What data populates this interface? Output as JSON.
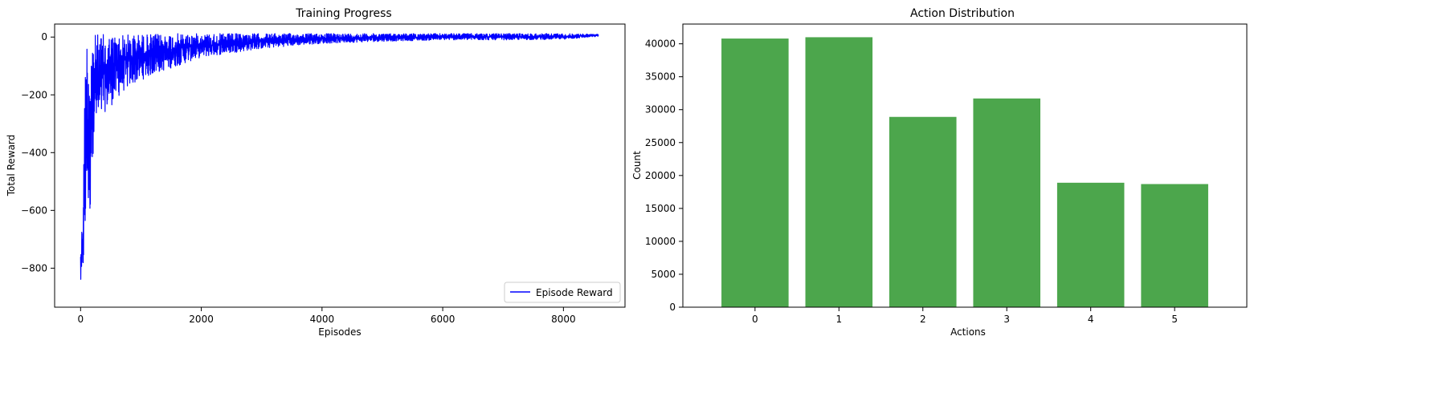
{
  "colors": {
    "line": "#0000ff",
    "bar": "#4ca64c",
    "axis": "#000000",
    "background": "#ffffff"
  },
  "chart_data": [
    {
      "type": "line",
      "title": "Training Progress",
      "xlabel": "Episodes",
      "ylabel": "Total Reward",
      "xlim": [
        -430,
        9020
      ],
      "ylim": [
        -935,
        45
      ],
      "xticks": [
        0,
        2000,
        4000,
        6000,
        8000
      ],
      "yticks": [
        -800,
        -600,
        -400,
        -200,
        0
      ],
      "grid": false,
      "legend": {
        "placement": "lower right",
        "entries": [
          "Episode Reward"
        ]
      },
      "series": [
        {
          "name": "Episode Reward",
          "x": [
            0,
            20,
            40,
            60,
            80,
            100,
            120,
            140,
            160,
            180,
            200,
            250,
            300,
            400,
            500,
            700,
            900,
            1200,
            1600,
            2000,
            2500,
            3000,
            3500,
            4000,
            5000,
            6000,
            7000,
            8000,
            8580
          ],
          "y": [
            -860,
            -880,
            -600,
            -700,
            -280,
            -100,
            -10,
            -620,
            -640,
            -150,
            -420,
            -220,
            -320,
            -230,
            -190,
            -160,
            -120,
            -100,
            -70,
            -60,
            -45,
            -40,
            -30,
            -20,
            -10,
            -5,
            -5,
            -5,
            5
          ],
          "band_upper": [
            -690,
            -650,
            -550,
            -300,
            5,
            10,
            10,
            5,
            0,
            0,
            10,
            10,
            10,
            10,
            10,
            10,
            10,
            10,
            12,
            12,
            12,
            12,
            12,
            12,
            12,
            12,
            12,
            12,
            10
          ],
          "band_lower": [
            -870,
            -890,
            -820,
            -790,
            -800,
            -500,
            -640,
            -650,
            -630,
            -420,
            -420,
            -320,
            -320,
            -260,
            -240,
            -190,
            -160,
            -130,
            -100,
            -70,
            -55,
            -40,
            -30,
            -22,
            -15,
            -10,
            -10,
            -8,
            2
          ]
        }
      ]
    },
    {
      "type": "bar",
      "title": "Action Distribution",
      "xlabel": "Actions",
      "ylabel": "Count",
      "categories": [
        "0",
        "1",
        "2",
        "3",
        "4",
        "5"
      ],
      "values": [
        40800,
        41000,
        28900,
        31700,
        18900,
        18700
      ],
      "xlim": [
        -0.86,
        5.86
      ],
      "ylim": [
        0,
        43000
      ],
      "yticks": [
        0,
        5000,
        10000,
        15000,
        20000,
        25000,
        30000,
        35000,
        40000
      ],
      "grid": false
    }
  ]
}
